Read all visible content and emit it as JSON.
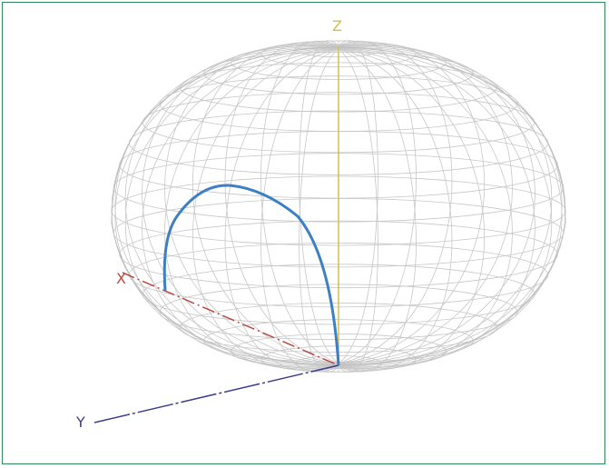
{
  "figure": {
    "axes": [
      {
        "id": "z",
        "label": "Z",
        "color": "#d4c04a"
      },
      {
        "id": "x",
        "label": "X",
        "color": "#b84a44"
      },
      {
        "id": "y",
        "label": "Y",
        "color": "#3c3c8a"
      }
    ],
    "mesh_color": "#c7c7c7",
    "arc_color": "#3b7fc4"
  }
}
